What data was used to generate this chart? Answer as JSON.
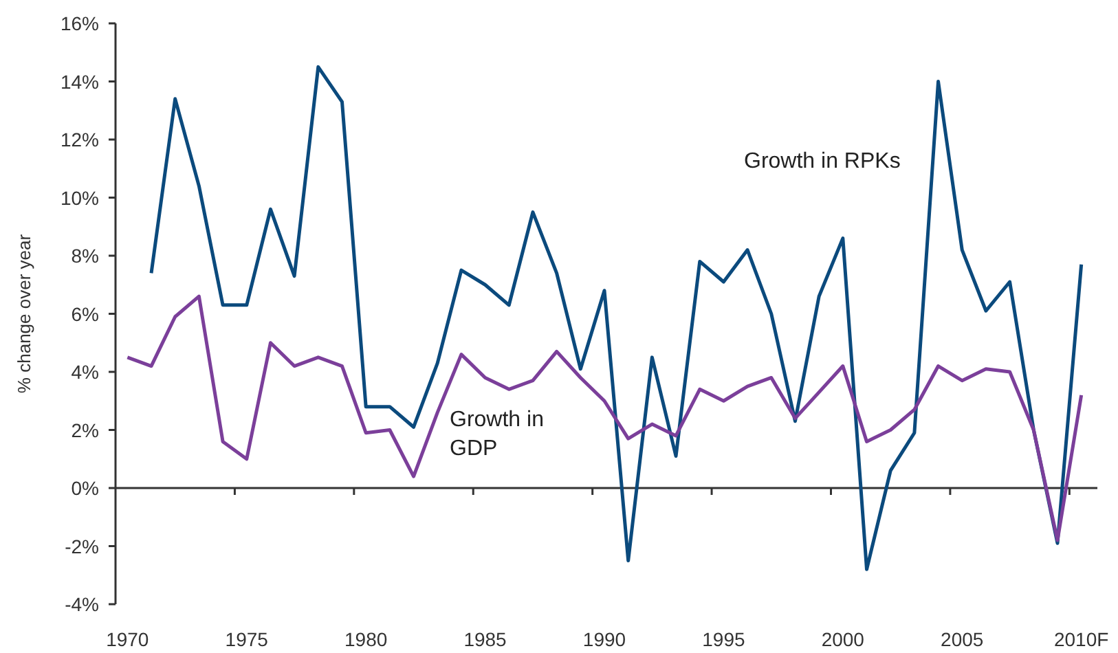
{
  "chart_data": {
    "type": "line",
    "ylabel": "% change over year",
    "categories": [
      "1970",
      null,
      null,
      null,
      null,
      "1975",
      null,
      null,
      null,
      null,
      "1980",
      null,
      null,
      null,
      null,
      "1985",
      null,
      null,
      null,
      null,
      "1990",
      null,
      null,
      null,
      null,
      "1995",
      null,
      null,
      null,
      null,
      "2000",
      null,
      null,
      null,
      null,
      "2005",
      null,
      null,
      null,
      null,
      "2010F"
    ],
    "series": [
      {
        "name": "Growth in RPKs",
        "color": "#0b4a7d",
        "values": [
          null,
          7.4,
          13.4,
          10.4,
          6.3,
          6.3,
          9.6,
          7.3,
          14.5,
          13.3,
          2.8,
          2.8,
          2.1,
          4.3,
          7.5,
          7.0,
          6.3,
          9.5,
          7.4,
          4.1,
          6.8,
          -2.5,
          4.5,
          1.1,
          7.8,
          7.1,
          8.2,
          6.0,
          2.3,
          6.6,
          8.6,
          -2.8,
          0.6,
          1.9,
          14.0,
          8.2,
          6.1,
          7.1,
          2.0,
          -1.9,
          7.7
        ]
      },
      {
        "name": "Growth in GDP",
        "color": "#7b3f9a",
        "values": [
          4.5,
          4.2,
          5.9,
          6.6,
          1.6,
          1.0,
          5.0,
          4.2,
          4.5,
          4.2,
          1.9,
          2.0,
          0.4,
          2.6,
          4.6,
          3.8,
          3.4,
          3.7,
          4.7,
          3.8,
          3.0,
          1.7,
          2.2,
          1.8,
          3.4,
          3.0,
          3.5,
          3.8,
          2.4,
          3.3,
          4.2,
          1.6,
          2.0,
          2.7,
          4.2,
          3.7,
          4.1,
          4.0,
          2.0,
          -1.8,
          3.2
        ]
      }
    ],
    "ylim": [
      -4,
      16
    ],
    "yticks": [
      {
        "value": -4,
        "label": "-4%"
      },
      {
        "value": -2,
        "label": "-2%"
      },
      {
        "value": 0,
        "label": "0%"
      },
      {
        "value": 2,
        "label": "2%"
      },
      {
        "value": 4,
        "label": "4%"
      },
      {
        "value": 6,
        "label": "6%"
      },
      {
        "value": 8,
        "label": "8%"
      },
      {
        "value": 10,
        "label": "10%"
      },
      {
        "value": 12,
        "label": "12%"
      },
      {
        "value": 14,
        "label": "14%"
      },
      {
        "value": 16,
        "label": "16%"
      }
    ],
    "marker": "none",
    "line_style": "solid"
  }
}
